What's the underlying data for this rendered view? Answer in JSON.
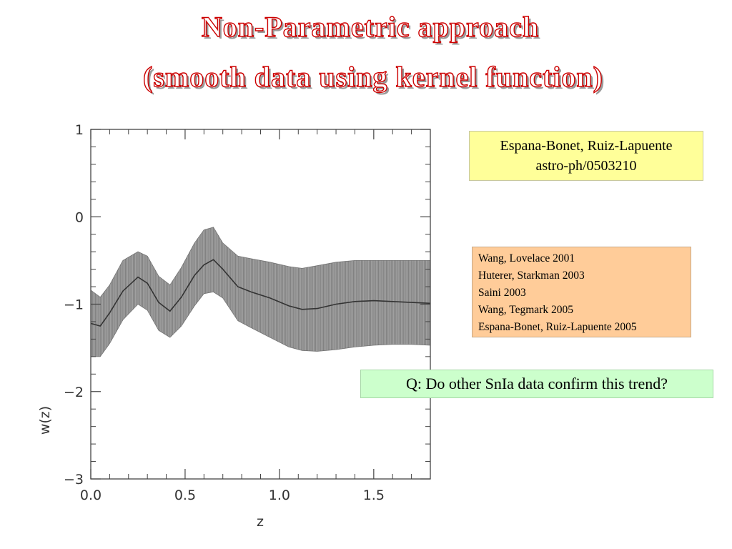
{
  "slide": {
    "title_line1": "Non-Parametric approach",
    "title_line2": "(smooth data using kernel function)",
    "title_color": "#cc0000"
  },
  "citation": {
    "line1": "Espana-Bonet, Ruiz-Lapuente",
    "line2": "astro-ph/0503210",
    "bg_color": "#ffff99"
  },
  "references": {
    "items": [
      "Wang, Lovelace 2001",
      "Huterer, Starkman 2003",
      "Saini 2003",
      "Wang, Tegmark 2005",
      "Espana-Bonet, Ruiz-Lapuente  2005"
    ],
    "bg_color": "#ffcc99"
  },
  "question": {
    "text": "Q: Do other SnIa data confirm this trend?",
    "bg_color": "#ccffcc"
  },
  "chart_data": {
    "type": "line",
    "title": "",
    "xlabel": "z",
    "ylabel": "w(z)",
    "xlim": [
      0.0,
      1.8
    ],
    "ylim": [
      -3,
      1
    ],
    "x_ticks": [
      0.0,
      0.5,
      1.0,
      1.5
    ],
    "x_tick_labels": [
      "0.0",
      "0.5",
      "1.0",
      "1.5"
    ],
    "y_ticks": [
      1,
      0,
      -1,
      -2,
      -3
    ],
    "y_tick_labels": [
      "1",
      "0",
      "−1",
      "−2",
      "−3"
    ],
    "grid": false,
    "series": [
      {
        "name": "",
        "style": "solid",
        "color": "#333333",
        "x": [
          0.0,
          0.05,
          0.1,
          0.17,
          0.25,
          0.3,
          0.36,
          0.42,
          0.48,
          0.55,
          0.6,
          0.65,
          0.7,
          0.78,
          0.85,
          0.95,
          1.05,
          1.12,
          1.2,
          1.3,
          1.4,
          1.5,
          1.6,
          1.7,
          1.8
        ],
        "y": [
          -1.22,
          -1.25,
          -1.1,
          -0.85,
          -0.69,
          -0.76,
          -0.98,
          -1.08,
          -0.92,
          -0.67,
          -0.55,
          -0.49,
          -0.6,
          -0.8,
          -0.86,
          -0.93,
          -1.02,
          -1.06,
          -1.05,
          -1.0,
          -0.97,
          -0.96,
          -0.97,
          -0.98,
          -0.99
        ]
      }
    ],
    "band": {
      "fill": "#8f8f8f",
      "x": [
        0.0,
        0.05,
        0.1,
        0.17,
        0.25,
        0.3,
        0.36,
        0.42,
        0.48,
        0.55,
        0.6,
        0.65,
        0.7,
        0.78,
        0.85,
        0.95,
        1.05,
        1.12,
        1.2,
        1.3,
        1.4,
        1.5,
        1.6,
        1.7,
        1.8
      ],
      "upper": [
        -0.84,
        -0.92,
        -0.78,
        -0.5,
        -0.4,
        -0.45,
        -0.68,
        -0.78,
        -0.58,
        -0.3,
        -0.15,
        -0.12,
        -0.3,
        -0.45,
        -0.48,
        -0.52,
        -0.57,
        -0.59,
        -0.56,
        -0.52,
        -0.5,
        -0.5,
        -0.5,
        -0.5,
        -0.5
      ],
      "lower": [
        -1.6,
        -1.6,
        -1.45,
        -1.18,
        -1.0,
        -1.07,
        -1.3,
        -1.38,
        -1.25,
        -1.02,
        -0.88,
        -0.86,
        -0.93,
        -1.19,
        -1.27,
        -1.38,
        -1.49,
        -1.53,
        -1.54,
        -1.52,
        -1.49,
        -1.47,
        -1.46,
        -1.46,
        -1.47
      ]
    }
  }
}
